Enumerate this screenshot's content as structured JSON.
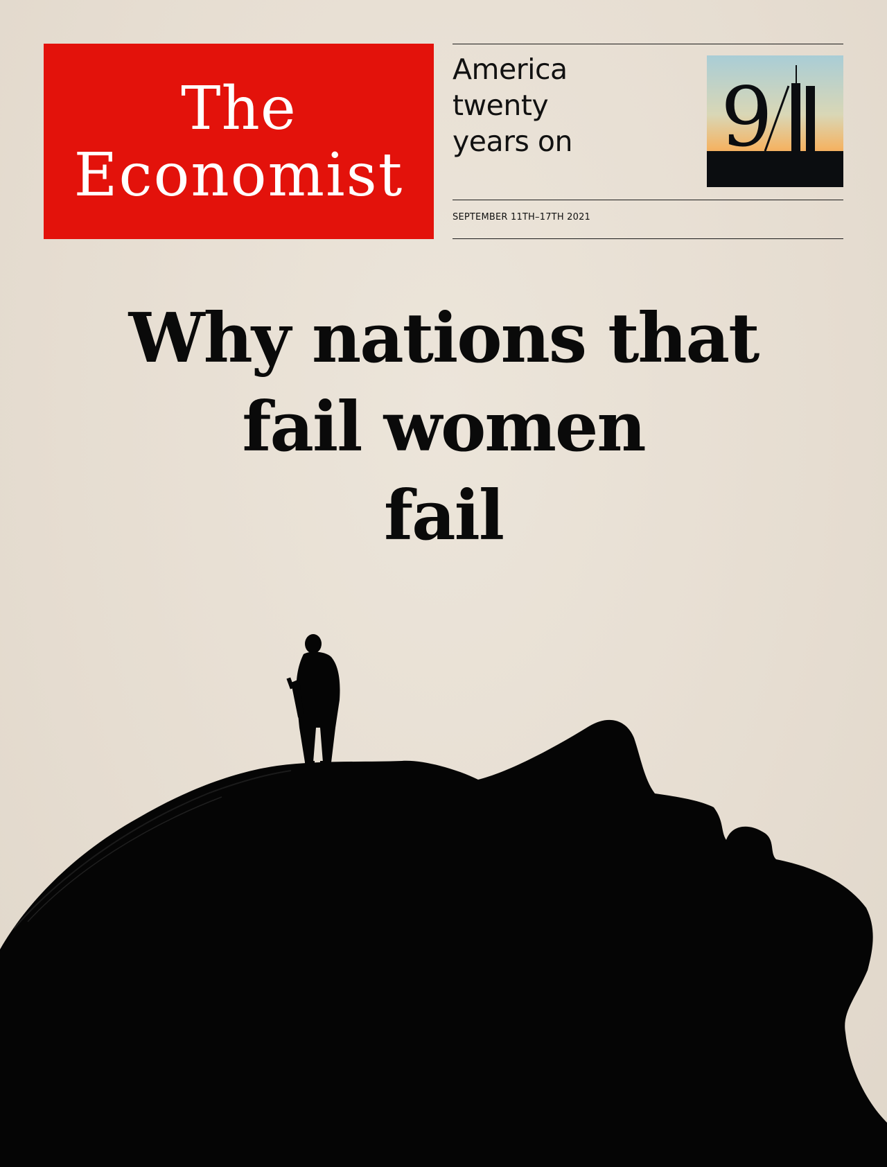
{
  "masthead": {
    "line1": "The",
    "line2": "Economist"
  },
  "tagline": {
    "line1": "America",
    "line2": "twenty",
    "line3": "years on"
  },
  "dateline": "SEPTEMBER 11TH–17TH 2021",
  "badge": {
    "label": "9/11"
  },
  "headline": {
    "line1": "Why nations that",
    "line2": "fail women",
    "line3": "fail"
  },
  "colors": {
    "masthead_red": "#e3120b",
    "paper": "#e9e1d6",
    "ink": "#0a0a0a"
  }
}
